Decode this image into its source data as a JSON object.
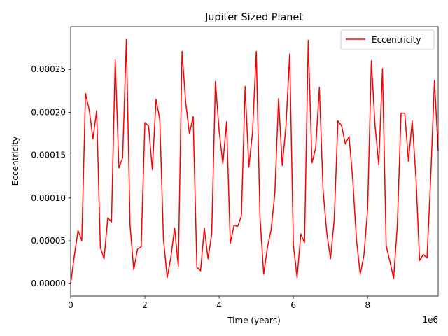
{
  "chart_data": {
    "type": "line",
    "title": "Jupiter Sized Planet",
    "xlabel": "Time (years)",
    "ylabel": "Eccentricity",
    "x_offset_label": "1e6",
    "xlim": [
      0,
      9900000
    ],
    "ylim": [
      -1.45e-05,
      0.0003
    ],
    "x_ticks": [
      0,
      2000000,
      4000000,
      6000000,
      8000000
    ],
    "x_tick_labels": [
      "0",
      "2",
      "4",
      "6",
      "8"
    ],
    "y_ticks": [
      0,
      5e-05,
      0.0001,
      0.00015,
      0.0002,
      0.00025
    ],
    "y_tick_labels": [
      "0.00000",
      "0.00005",
      "0.00010",
      "0.00015",
      "0.00020",
      "0.00025"
    ],
    "grid": false,
    "legend_position": "top-right",
    "series": [
      {
        "name": "Eccentricity",
        "color": "#ff0000",
        "x": [
          0,
          100000,
          200000,
          300000,
          400000,
          500000,
          600000,
          700000,
          800000,
          900000,
          1000000,
          1100000,
          1200000,
          1300000,
          1400000,
          1500000,
          1600000,
          1700000,
          1800000,
          1900000,
          2000000,
          2100000,
          2200000,
          2300000,
          2400000,
          2500000,
          2600000,
          2700000,
          2800000,
          2900000,
          3000000,
          3100000,
          3200000,
          3300000,
          3400000,
          3500000,
          3600000,
          3700000,
          3800000,
          3900000,
          4000000,
          4100000,
          4200000,
          4300000,
          4400000,
          4500000,
          4600000,
          4700000,
          4800000,
          4900000,
          5000000,
          5100000,
          5200000,
          5300000,
          5400000,
          5500000,
          5600000,
          5700000,
          5800000,
          5900000,
          6000000,
          6100000,
          6200000,
          6300000,
          6400000,
          6500000,
          6600000,
          6700000,
          6800000,
          6900000,
          7000000,
          7100000,
          7200000,
          7300000,
          7400000,
          7500000,
          7600000,
          7700000,
          7800000,
          7900000,
          8000000,
          8100000,
          8200000,
          8300000,
          8400000,
          8500000,
          8600000,
          8700000,
          8800000,
          8900000,
          9000000,
          9100000,
          9200000,
          9300000,
          9400000,
          9500000,
          9600000,
          9700000,
          9800000,
          9900000
        ],
        "values": [
          0.0,
          3.3e-05,
          6.2e-05,
          5e-05,
          0.000222,
          0.000203,
          0.000169,
          0.000202,
          4.2e-05,
          2.9e-05,
          7.7e-05,
          7.2e-05,
          0.000261,
          0.000135,
          0.000147,
          0.000285,
          6.8e-05,
          1.6e-05,
          4e-05,
          4.3e-05,
          0.000188,
          0.000184,
          0.000133,
          0.000215,
          0.000192,
          5.2e-05,
          7e-06,
          3.1e-05,
          6.5e-05,
          2e-05,
          0.000271,
          0.000211,
          0.000175,
          0.000195,
          1.9e-05,
          1.5e-05,
          6.5e-05,
          2.9e-05,
          5.8e-05,
          0.000236,
          0.000178,
          0.00014,
          0.000189,
          4.7e-05,
          6.8e-05,
          6.7e-05,
          7.9e-05,
          0.00023,
          0.000136,
          0.000177,
          0.000271,
          7.8e-05,
          1.1e-05,
          4.2e-05,
          6.3e-05,
          0.000105,
          0.000216,
          0.000138,
          0.000184,
          0.000268,
          4.5e-05,
          7e-06,
          5.8e-05,
          4.8e-05,
          0.000284,
          0.000141,
          0.000158,
          0.000229,
          0.000109,
          5.9e-05,
          2.9e-05,
          7.5e-05,
          0.00019,
          0.000184,
          0.000163,
          0.000172,
          0.000121,
          5.1e-05,
          1.1e-05,
          3.3e-05,
          8.7e-05,
          0.00026,
          0.000184,
          0.000139,
          0.000251,
          4.4e-05,
          2.6e-05,
          6e-06,
          6.8e-05,
          0.000199,
          0.000199,
          0.000143,
          0.00019,
          0.000125,
          2.7e-05,
          3.4e-05,
          3e-05,
          0.000125,
          0.000237,
          0.000155
        ]
      }
    ]
  }
}
